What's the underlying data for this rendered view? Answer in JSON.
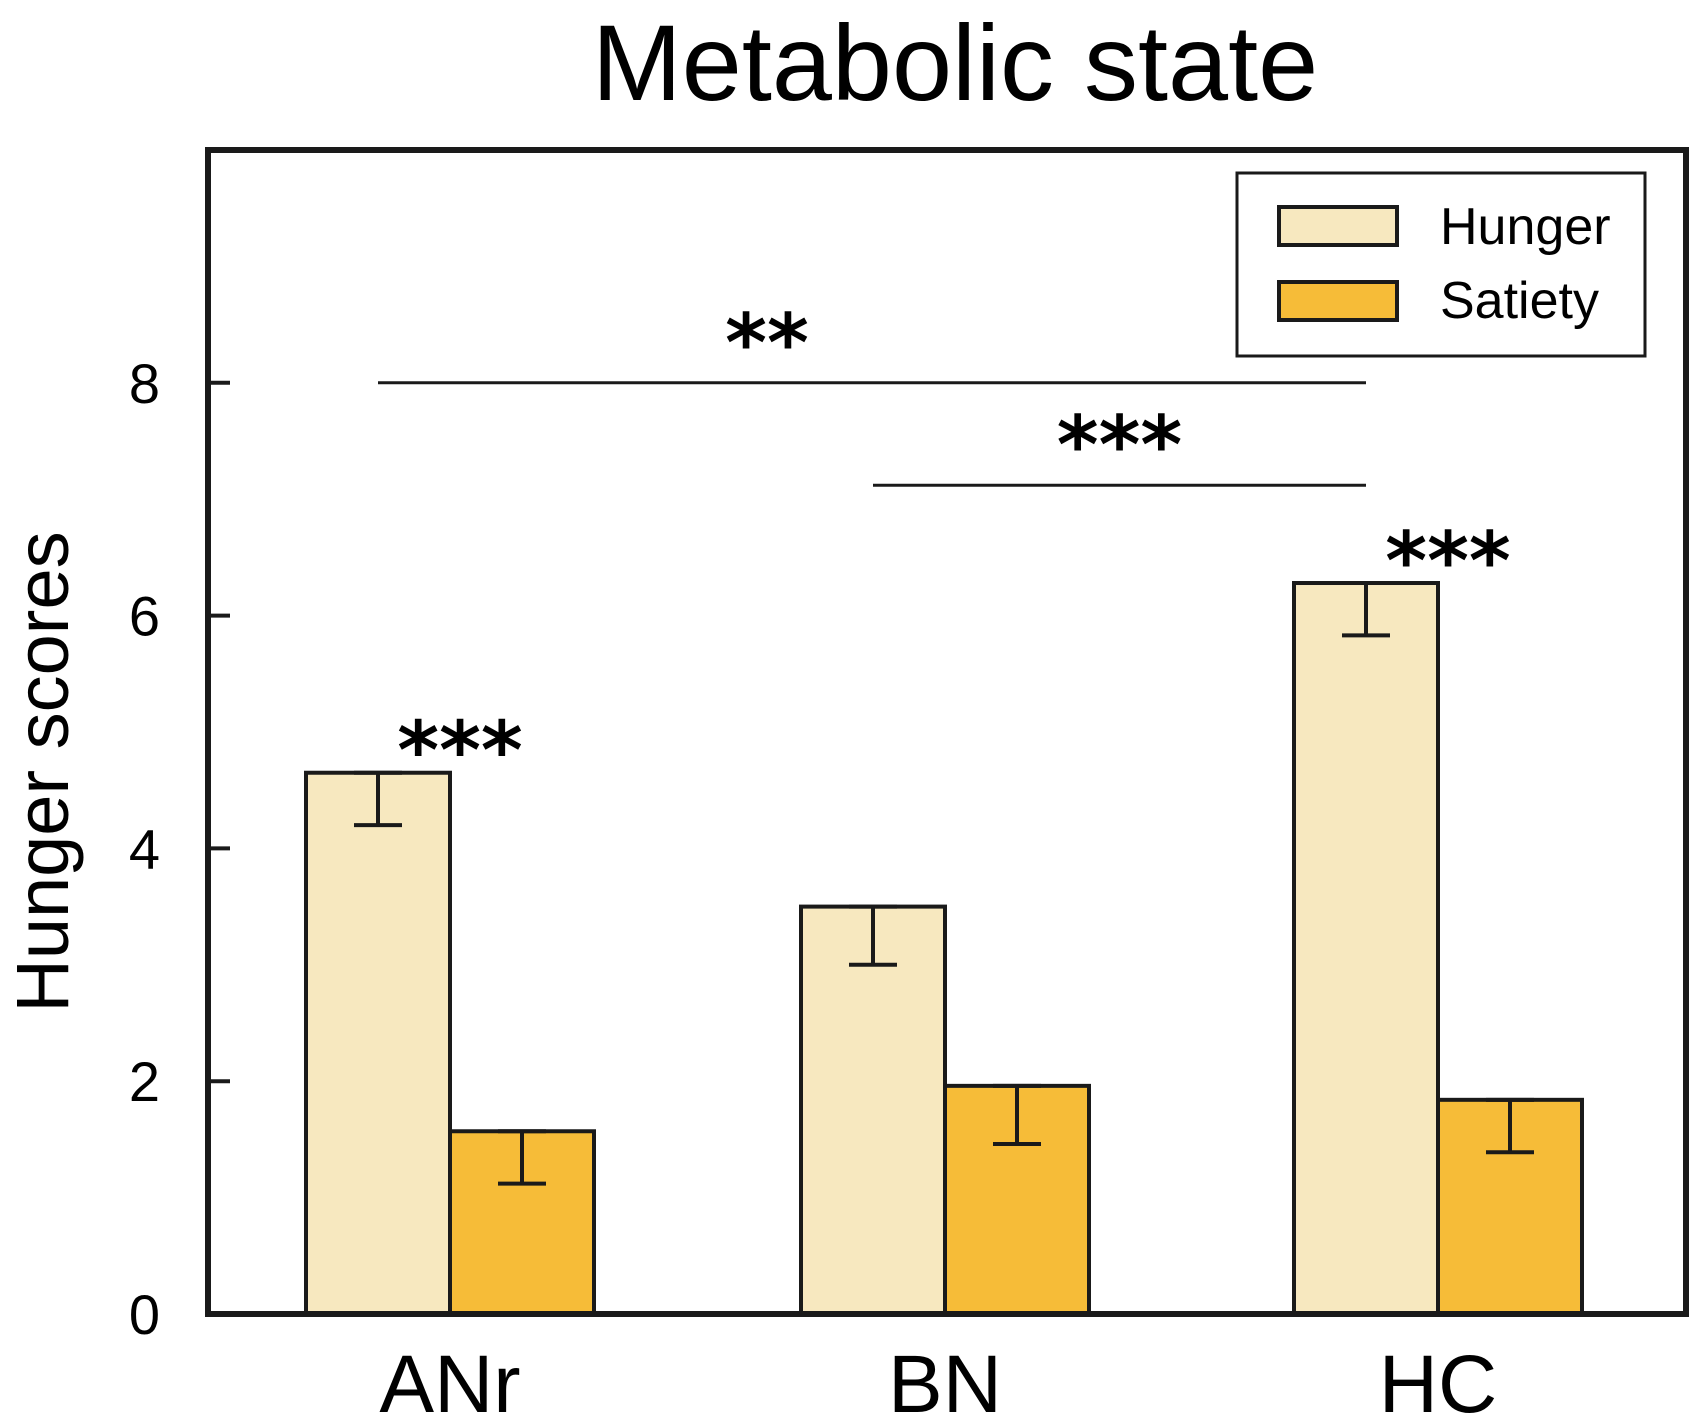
{
  "chart_data": {
    "type": "bar",
    "title": "Metabolic state",
    "xlabel": "",
    "ylabel": "Hunger scores",
    "ylim": [
      0,
      10
    ],
    "yticks": [
      0,
      2,
      4,
      6,
      8
    ],
    "categories": [
      "ANr",
      "BN",
      "HC"
    ],
    "series": [
      {
        "name": "Hunger",
        "color": "#f7e8bf",
        "values": [
          4.65,
          3.5,
          6.28
        ],
        "errors": [
          0.45,
          0.5,
          0.45
        ]
      },
      {
        "name": "Satiety",
        "color": "#f6bc38",
        "values": [
          1.57,
          1.96,
          1.84
        ],
        "errors": [
          0.45,
          0.5,
          0.45
        ]
      }
    ],
    "legend": {
      "position": "top-right",
      "entries": [
        "Hunger",
        "Satiety"
      ]
    },
    "annotations": [
      {
        "text": "***",
        "category": "ANr",
        "type": "within-group"
      },
      {
        "text": "***",
        "category": "HC",
        "type": "within-group"
      },
      {
        "text": "**",
        "from": "ANr",
        "to": "HC",
        "type": "between-group"
      },
      {
        "text": "***",
        "from": "BN",
        "to": "HC",
        "type": "between-group"
      }
    ]
  }
}
